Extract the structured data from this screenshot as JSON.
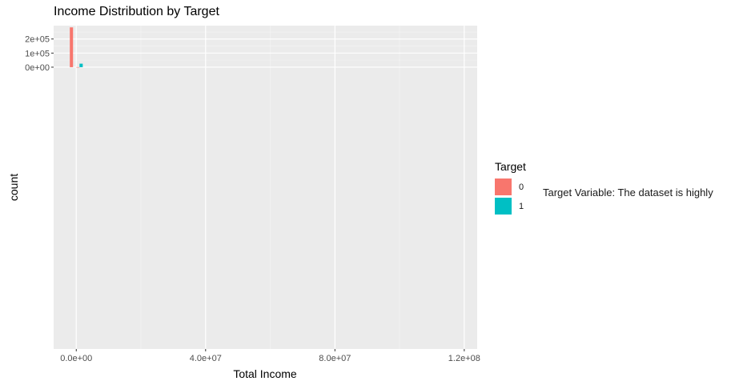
{
  "chart_data": {
    "type": "bar",
    "title": "Income Distribution by Target",
    "xlabel": "Total Income",
    "ylabel": "count",
    "xlim": [
      -7000000,
      124000000
    ],
    "ylim": [
      -2000000,
      295000
    ],
    "x_ticks": [
      0,
      40000000,
      80000000,
      120000000
    ],
    "x_tick_labels": [
      "0.0e+00",
      "4.0e+07",
      "8.0e+07",
      "1.2e+08"
    ],
    "y_ticks": [
      0,
      100000,
      200000
    ],
    "y_tick_labels": [
      "0e+00",
      "1e+05",
      "2e+05"
    ],
    "bin_width": 2000000,
    "series": [
      {
        "name": "0",
        "color": "#F8766D",
        "bins": [
          {
            "x_center": -1000000,
            "count": 282500
          },
          {
            "x_center": 1000000,
            "count": 700
          }
        ]
      },
      {
        "name": "1",
        "color": "#00BFC4",
        "bins": [
          {
            "x_center": 1000000,
            "count": 24800
          }
        ]
      }
    ],
    "legend_title": "Target",
    "legend_position": "right",
    "grid": true
  },
  "annotation_text": "Target Variable: The dataset is highly"
}
